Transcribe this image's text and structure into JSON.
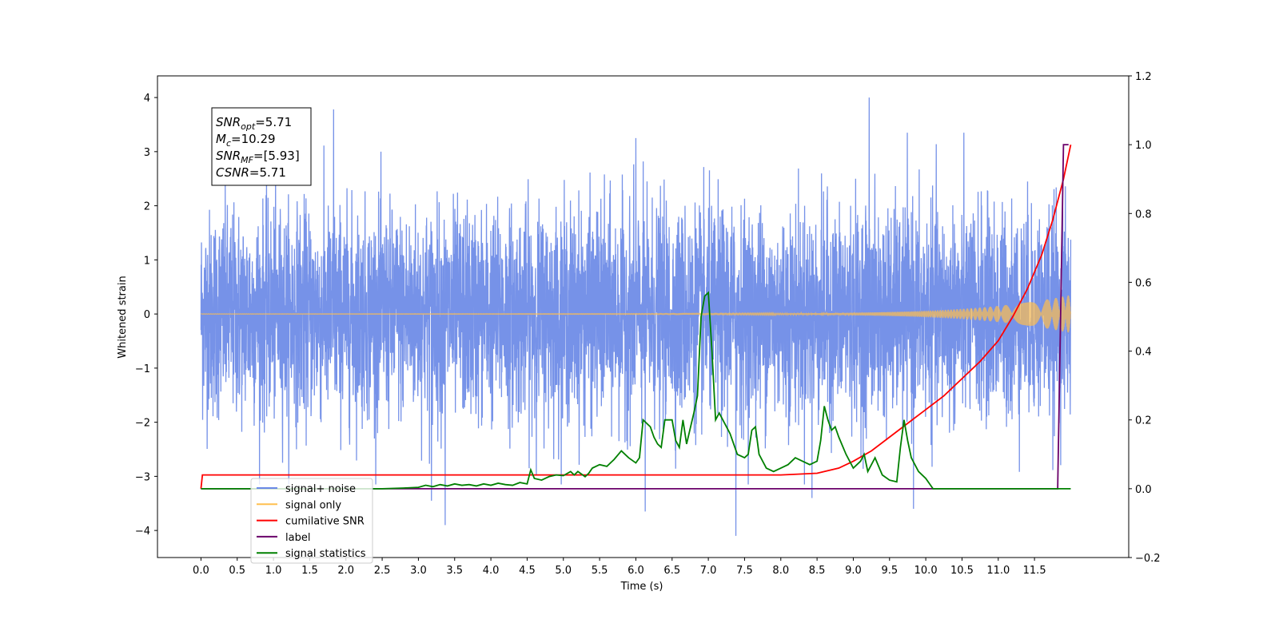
{
  "chart_data": {
    "type": "line",
    "xlabel": "Time (s)",
    "ylabel": "Whitened strain",
    "xlim": [
      -0.6,
      12.8
    ],
    "ylim": [
      -4.5,
      4.4
    ],
    "y2lim": [
      -0.2,
      1.2
    ],
    "xticks": [
      "0.0",
      "0.5",
      "1.0",
      "1.5",
      "2.0",
      "2.5",
      "3.0",
      "3.5",
      "4.0",
      "4.5",
      "5.0",
      "5.5",
      "6.0",
      "6.5",
      "7.0",
      "7.5",
      "8.0",
      "8.5",
      "9.0",
      "9.5",
      "10.0",
      "10.5",
      "11.0",
      "11.5"
    ],
    "yticks": [
      "4",
      "3",
      "2",
      "1",
      "0",
      "−1",
      "−2",
      "−3",
      "−4"
    ],
    "y2ticks": [
      "1.2",
      "1.0",
      "0.8",
      "0.6",
      "0.4",
      "0.2",
      "0.0",
      "−0.2"
    ],
    "grid": false,
    "legend_position": "bottom-left",
    "series": [
      {
        "name": "signal+ noise",
        "axis": "left",
        "color": "#6a89e6",
        "kind": "noise",
        "t_start": 0.0,
        "t_end": 12.0,
        "sigma": 0.95,
        "spikes": [
          [
            1.83,
            3.78
          ],
          [
            9.22,
            4.0
          ],
          [
            7.38,
            -4.1
          ],
          [
            3.37,
            -3.9
          ],
          [
            6.13,
            -3.65
          ],
          [
            9.83,
            -3.6
          ],
          [
            3.18,
            -3.45
          ],
          [
            8.43,
            -3.4
          ],
          [
            6.0,
            3.25
          ]
        ]
      },
      {
        "name": "signal only",
        "axis": "left",
        "color": "#ffbf4f",
        "kind": "chirp",
        "t_start": 0.0,
        "t_end": 12.0,
        "max_amplitude": 0.35
      },
      {
        "name": "cumilative SNR",
        "axis": "right",
        "color": "#ff0000",
        "kind": "line",
        "x": [
          0.0,
          0.02,
          0.5,
          2.0,
          4.0,
          6.0,
          7.0,
          8.0,
          8.5,
          8.8,
          9.0,
          9.25,
          9.5,
          9.75,
          10.0,
          10.25,
          10.5,
          10.75,
          11.0,
          11.2,
          11.4,
          11.6,
          11.75,
          11.9,
          12.0
        ],
        "y": [
          0.0,
          0.04,
          0.04,
          0.04,
          0.04,
          0.04,
          0.04,
          0.04,
          0.045,
          0.06,
          0.08,
          0.11,
          0.15,
          0.19,
          0.23,
          0.27,
          0.32,
          0.37,
          0.43,
          0.5,
          0.58,
          0.68,
          0.78,
          0.9,
          1.0
        ]
      },
      {
        "name": "label",
        "axis": "right",
        "color": "#6a006a",
        "kind": "line",
        "x": [
          0.0,
          11.82,
          11.9,
          11.97
        ],
        "y": [
          0.0,
          0.0,
          1.0,
          1.0
        ]
      },
      {
        "name": "signal statistics",
        "axis": "right",
        "color": "#008000",
        "kind": "line",
        "x": [
          0.0,
          2.5,
          2.8,
          3.0,
          3.1,
          3.2,
          3.3,
          3.4,
          3.5,
          3.6,
          3.7,
          3.8,
          3.9,
          4.0,
          4.1,
          4.2,
          4.3,
          4.4,
          4.5,
          4.55,
          4.6,
          4.7,
          4.8,
          4.9,
          5.0,
          5.1,
          5.15,
          5.2,
          5.3,
          5.35,
          5.4,
          5.5,
          5.6,
          5.7,
          5.8,
          5.9,
          6.0,
          6.05,
          6.1,
          6.2,
          6.25,
          6.3,
          6.35,
          6.4,
          6.5,
          6.55,
          6.6,
          6.65,
          6.7,
          6.8,
          6.85,
          6.9,
          6.95,
          7.0,
          7.05,
          7.1,
          7.15,
          7.2,
          7.3,
          7.4,
          7.5,
          7.55,
          7.6,
          7.65,
          7.7,
          7.8,
          7.9,
          8.0,
          8.1,
          8.2,
          8.3,
          8.4,
          8.5,
          8.55,
          8.6,
          8.65,
          8.7,
          8.75,
          8.8,
          8.9,
          9.0,
          9.1,
          9.15,
          9.2,
          9.3,
          9.4,
          9.5,
          9.6,
          9.65,
          9.7,
          9.75,
          9.8,
          9.9,
          10.0,
          10.1,
          12.0
        ],
        "y": [
          0.0,
          0.0,
          0.002,
          0.004,
          0.01,
          0.006,
          0.012,
          0.008,
          0.014,
          0.01,
          0.012,
          0.008,
          0.014,
          0.01,
          0.016,
          0.012,
          0.01,
          0.018,
          0.014,
          0.055,
          0.03,
          0.025,
          0.035,
          0.04,
          0.038,
          0.05,
          0.04,
          0.05,
          0.035,
          0.045,
          0.06,
          0.07,
          0.065,
          0.085,
          0.11,
          0.09,
          0.075,
          0.09,
          0.2,
          0.18,
          0.15,
          0.13,
          0.12,
          0.2,
          0.2,
          0.14,
          0.12,
          0.2,
          0.13,
          0.22,
          0.27,
          0.5,
          0.56,
          0.57,
          0.4,
          0.2,
          0.22,
          0.2,
          0.16,
          0.1,
          0.09,
          0.1,
          0.17,
          0.18,
          0.1,
          0.06,
          0.05,
          0.06,
          0.07,
          0.09,
          0.08,
          0.07,
          0.08,
          0.14,
          0.24,
          0.2,
          0.17,
          0.18,
          0.15,
          0.1,
          0.06,
          0.08,
          0.1,
          0.05,
          0.09,
          0.04,
          0.025,
          0.02,
          0.12,
          0.2,
          0.14,
          0.09,
          0.05,
          0.03,
          0.0,
          0.0
        ]
      }
    ],
    "annotation": [
      {
        "base": "SNR",
        "sub": "opt",
        "value": "=5.71"
      },
      {
        "base": "M",
        "sub": "c",
        "value": "=10.29"
      },
      {
        "base": "SNR",
        "sub": "MF",
        "value": "=[5.93]"
      },
      {
        "base": "CSNR",
        "sub": "",
        "value": "=5.71"
      }
    ]
  }
}
